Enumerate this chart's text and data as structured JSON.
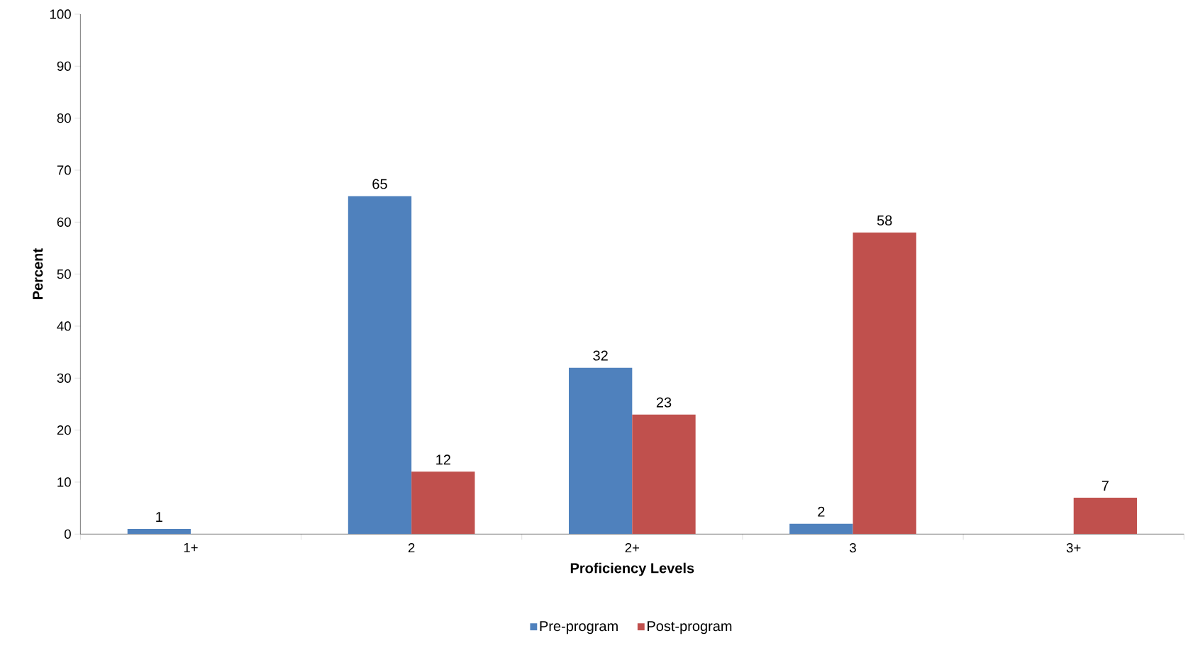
{
  "chart_data": {
    "type": "bar",
    "xlabel": "Proficiency Levels",
    "ylabel": "Percent",
    "categories": [
      "1+",
      "2",
      "2+",
      "3",
      "3+"
    ],
    "series": [
      {
        "name": "Pre-program",
        "color": "#4f81bd",
        "values": [
          1,
          65,
          32,
          2,
          null
        ]
      },
      {
        "name": "Post-program",
        "color": "#c0504d",
        "values": [
          null,
          12,
          23,
          58,
          7
        ]
      }
    ],
    "ylim": [
      0,
      100
    ],
    "yticks": [
      0,
      10,
      20,
      30,
      40,
      50,
      60,
      70,
      80,
      90,
      100
    ],
    "grid": false,
    "legend": "bottom",
    "data_labels": true
  }
}
